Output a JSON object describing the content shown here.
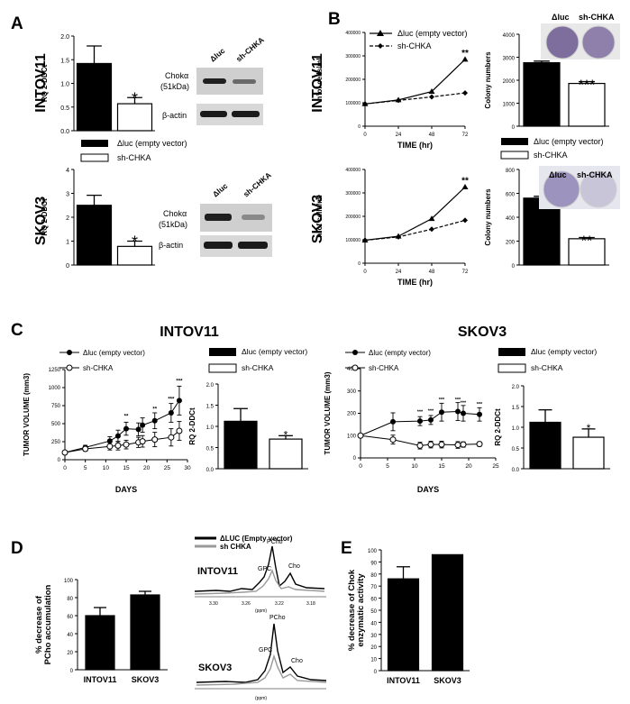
{
  "panel_letters": {
    "A": "A",
    "B": "B",
    "C": "C",
    "D": "D",
    "E": "E"
  },
  "common": {
    "empty_vector_label": "Δluc (empty vector)",
    "sh_chka_label": "sh-CHKA",
    "rq_label": "RQ 2-DDCt",
    "colony_label": "Colony numbers",
    "cells_label": "n°of cells/ml",
    "time_label": "TIME (hr)",
    "days_label": "DAYS",
    "tumor_label": "TUMOR VOLUME (mm3)",
    "star1": "*",
    "star2": "**",
    "star3": "***"
  },
  "rows": {
    "intov11": "INTOV11",
    "skov3": "SKOV3"
  },
  "western": {
    "col_dluc": "Δluc",
    "col_sh": "sh-CHKA",
    "choka": "Chokα",
    "kda": "(51kDa)",
    "actin": "β-actin"
  },
  "wells": {
    "dluc": "Δluc",
    "sh": "sh-CHKA"
  },
  "nmr": {
    "legend_empty": "ΔLUC (Empty vector)",
    "legend_sh": "sh CHKA",
    "intov11": "INTOV11",
    "skov3": "SKOV3",
    "pcho": "PCho",
    "gpc": "GPC",
    "cho": "Cho",
    "ppm": "(ppm)",
    "ticks": [
      "3.30",
      "3.26",
      "3.22",
      "3.18"
    ]
  },
  "colors": {
    "empty": "#000000",
    "sh": "#ffffff",
    "nmr_sh": "#9a9a9a",
    "blot_band": "#222222",
    "blot_bg": "#c9c9c9",
    "well": "#7a6a9a"
  },
  "chart_data": [
    {
      "id": "A_intov11_rq",
      "type": "bar",
      "title": "",
      "ylabel": "RQ 2-DDCt",
      "categories": [
        "Δluc (empty vector)",
        "sh-CHKA"
      ],
      "values": [
        1.42,
        0.57
      ],
      "errors": [
        0.37,
        0.13
      ],
      "ylim": [
        0,
        2.0
      ],
      "yticks": [
        "0.0",
        "0.5",
        "1.0",
        "1.5",
        "2.0"
      ],
      "annotations": [
        "",
        "*"
      ]
    },
    {
      "id": "A_skov3_rq",
      "type": "bar",
      "title": "",
      "ylabel": "RQ 2-DDCt",
      "categories": [
        "Δluc (empty vector)",
        "sh-CHKA"
      ],
      "values": [
        2.5,
        0.78
      ],
      "errors": [
        0.42,
        0.22
      ],
      "ylim": [
        0,
        4
      ],
      "yticks": [
        "0",
        "1",
        "2",
        "3",
        "4"
      ],
      "annotations": [
        "",
        "*"
      ]
    },
    {
      "id": "B_intov11_growth",
      "type": "line",
      "xlabel": "TIME (hr)",
      "ylabel": "n°of cells/ml",
      "x": [
        0,
        24,
        48,
        72
      ],
      "xticks": [
        "0",
        "24",
        "48",
        "72"
      ],
      "yticks": [
        "0",
        "100000",
        "200000",
        "300000",
        "400000"
      ],
      "ylim": [
        0,
        400000
      ],
      "series": [
        {
          "name": "Δluc (empty vector)",
          "values": [
            95000,
            112000,
            148000,
            285000
          ]
        },
        {
          "name": "sh-CHKA",
          "values": [
            95000,
            110000,
            125000,
            142000
          ]
        }
      ],
      "annotations": [
        "**"
      ]
    },
    {
      "id": "B_intov11_colony",
      "type": "bar",
      "ylabel": "Colony numbers",
      "categories": [
        "Δluc (empty vector)",
        "sh-CHKA"
      ],
      "values": [
        2760,
        1860
      ],
      "errors": [
        70,
        80
      ],
      "ylim": [
        0,
        4000
      ],
      "yticks": [
        "0",
        "1000",
        "2000",
        "3000",
        "4000"
      ],
      "annotations": [
        "",
        "***"
      ]
    },
    {
      "id": "B_skov3_growth",
      "type": "line",
      "xlabel": "TIME (hr)",
      "ylabel": "n°of cells/ml",
      "x": [
        0,
        24,
        48,
        72
      ],
      "xticks": [
        "0",
        "24",
        "48",
        "72"
      ],
      "yticks": [
        "0",
        "100000",
        "200000",
        "300000",
        "400000"
      ],
      "ylim": [
        0,
        400000
      ],
      "series": [
        {
          "name": "Δluc (empty vector)",
          "values": [
            98000,
            115000,
            190000,
            325000
          ]
        },
        {
          "name": "sh-CHKA",
          "values": [
            98000,
            112000,
            145000,
            183000
          ]
        }
      ],
      "annotations": [
        "**"
      ]
    },
    {
      "id": "B_skov3_colony",
      "type": "bar",
      "ylabel": "Colony numbers",
      "categories": [
        "Δluc (empty vector)",
        "sh-CHKA"
      ],
      "values": [
        560,
        220
      ],
      "errors": [
        15,
        10
      ],
      "ylim": [
        0,
        800
      ],
      "yticks": [
        "0",
        "200",
        "400",
        "600",
        "800"
      ],
      "annotations": [
        "",
        "**"
      ]
    },
    {
      "id": "C_intov11_tumor",
      "type": "line",
      "title": "INTOV11",
      "xlabel": "DAYS",
      "ylabel": "TUMOR VOLUME (mm3)",
      "x": [
        0,
        5,
        11,
        13,
        15,
        18,
        19,
        22,
        26,
        28
      ],
      "xticks": [
        "0",
        "5",
        "10",
        "15",
        "20",
        "25",
        "30"
      ],
      "yticks": [
        "0",
        "250",
        "500",
        "750",
        "1000",
        "1250"
      ],
      "ylim": [
        0,
        1250
      ],
      "series": [
        {
          "name": "Δluc (empty vector)",
          "values": [
            100,
            170,
            260,
            330,
            430,
            420,
            480,
            540,
            650,
            820
          ],
          "errors": [
            10,
            30,
            60,
            80,
            90,
            90,
            100,
            110,
            130,
            200
          ]
        },
        {
          "name": "sh-CHKA",
          "values": [
            100,
            150,
            185,
            195,
            210,
            240,
            255,
            280,
            310,
            400
          ],
          "errors": [
            10,
            30,
            50,
            60,
            60,
            70,
            80,
            100,
            120,
            130
          ]
        }
      ],
      "annotations": [
        "**",
        "**",
        "***",
        "***"
      ]
    },
    {
      "id": "C_intov11_rq",
      "type": "bar",
      "ylabel": "RQ 2-DDCt",
      "categories": [
        "Δluc (empty vector)",
        "sh-CHKA"
      ],
      "values": [
        1.12,
        0.7
      ],
      "errors": [
        0.3,
        0.08
      ],
      "ylim": [
        0,
        2.0
      ],
      "yticks": [
        "0.0",
        "0.5",
        "1.0",
        "1.5",
        "2.0"
      ],
      "annotations": [
        "",
        "*"
      ]
    },
    {
      "id": "C_skov3_tumor",
      "type": "line",
      "title": "SKOV3",
      "xlabel": "DAYS",
      "ylabel": "TUMOR VOLUME (mm3)",
      "x": [
        0,
        6,
        11,
        13,
        15,
        18,
        19,
        22
      ],
      "xticks": [
        "0",
        "5",
        "10",
        "15",
        "20",
        "25"
      ],
      "yticks": [
        "0",
        "100",
        "200",
        "300",
        "400"
      ],
      "ylim": [
        0,
        400
      ],
      "series": [
        {
          "name": "Δluc (empty vector)",
          "values": [
            100,
            162,
            165,
            170,
            205,
            208,
            200,
            195
          ],
          "errors": [
            3,
            40,
            20,
            20,
            40,
            40,
            35,
            30
          ]
        },
        {
          "name": "sh-CHKA",
          "values": [
            100,
            82,
            55,
            60,
            60,
            58,
            60,
            62
          ],
          "errors": [
            3,
            20,
            15,
            15,
            15,
            15,
            12,
            10
          ]
        }
      ],
      "annotations": [
        "***",
        "***",
        "***",
        "***",
        "***",
        "***"
      ]
    },
    {
      "id": "C_skov3_rq",
      "type": "bar",
      "ylabel": "RQ 2-DDCt",
      "categories": [
        "Δluc (empty vector)",
        "sh-CHKA"
      ],
      "values": [
        1.12,
        0.76
      ],
      "errors": [
        0.3,
        0.2
      ],
      "ylim": [
        0,
        2.0
      ],
      "yticks": [
        "0.0",
        "0.5",
        "1.0",
        "1.5",
        "2.0"
      ],
      "annotations": [
        "",
        "*"
      ]
    },
    {
      "id": "D_pcho",
      "type": "bar",
      "ylabel": "% decrease of PCho accumulation",
      "categories": [
        "INTOV11",
        "SKOV3"
      ],
      "values": [
        60,
        83
      ],
      "errors": [
        9,
        4
      ],
      "ylim": [
        0,
        100
      ],
      "yticks": [
        "0",
        "20",
        "40",
        "60",
        "80",
        "100"
      ]
    },
    {
      "id": "E_chok",
      "type": "bar",
      "ylabel": "% decrease of Chok enzymatic activity",
      "categories": [
        "INTOV11",
        "SKOV3"
      ],
      "values": [
        76,
        96
      ],
      "errors": [
        10,
        0
      ],
      "ylim": [
        0,
        100
      ],
      "yticks": [
        "0",
        "10",
        "20",
        "30",
        "40",
        "50",
        "60",
        "70",
        "80",
        "90",
        "100"
      ]
    }
  ]
}
